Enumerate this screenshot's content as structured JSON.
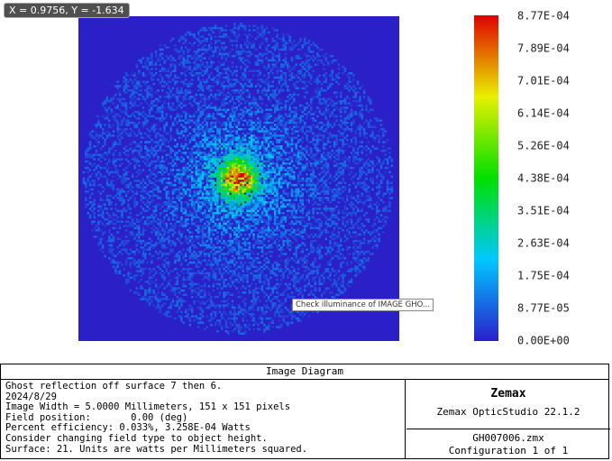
{
  "tooltip_coords": "X = 0.9756, Y = -1.634",
  "tooltip_hover": "Check illuminance of IMAGE GHO...",
  "colorbar_labels": [
    "8.77E-04",
    "7.89E-04",
    "7.01E-04",
    "6.14E-04",
    "5.26E-04",
    "4.38E-04",
    "3.51E-04",
    "2.63E-04",
    "1.75E-04",
    "8.77E-05",
    "0.00E+00"
  ],
  "footer": {
    "title": "Image Diagram",
    "info_lines": [
      "Ghost reflection off surface 7 then 6.",
      "2024/8/29",
      "Image Width = 5.0000 Millimeters, 151 x 151 pixels",
      "Field position:       0.00 (deg)",
      "Percent efficiency: 0.033%, 3.258E-04 Watts",
      "Consider changing field type to object height.",
      "Surface: 21. Units are watts per Millimeters squared."
    ],
    "brand": "Zemax",
    "version": "Zemax OpticStudio 22.1.2",
    "file": "GH007006.zmx",
    "configuration": "Configuration 1 of 1"
  }
}
